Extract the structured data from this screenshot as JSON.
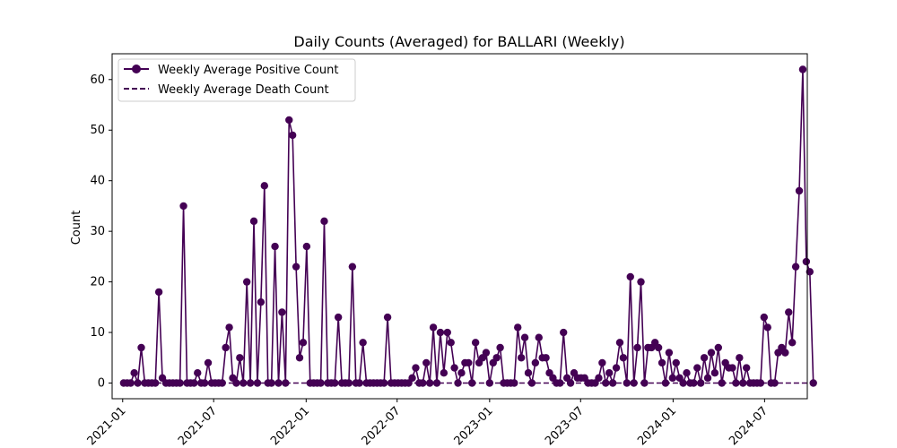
{
  "chart_data": {
    "type": "line",
    "title": "Daily Counts (Averaged) for BALLARI (Weekly)",
    "xlabel": "",
    "ylabel": "Count",
    "x_axis": "date",
    "xlim": [
      "2020-12-11",
      "2024-09-24"
    ],
    "ylim": [
      -3.1,
      65.1
    ],
    "yticks": [
      0,
      10,
      20,
      30,
      40,
      50,
      60
    ],
    "xticks": [
      {
        "date": "2021-01-01",
        "label": "2021-01"
      },
      {
        "date": "2021-07-01",
        "label": "2021-07"
      },
      {
        "date": "2022-01-01",
        "label": "2022-01"
      },
      {
        "date": "2022-07-01",
        "label": "2022-07"
      },
      {
        "date": "2023-01-01",
        "label": "2023-01"
      },
      {
        "date": "2023-07-01",
        "label": "2023-07"
      },
      {
        "date": "2024-01-01",
        "label": "2024-01"
      },
      {
        "date": "2024-07-01",
        "label": "2024-07"
      }
    ],
    "grid": false,
    "legend_position": "top-left",
    "x_start": "2021-01-03",
    "x_step_days": 7,
    "series": [
      {
        "name": "Weekly Average Positive Count",
        "color": "#440154",
        "style": "solid",
        "marker": "circle",
        "values": [
          0,
          0,
          0,
          2,
          0,
          7,
          0,
          0,
          0,
          0,
          18,
          1,
          0,
          0,
          0,
          0,
          0,
          35,
          0,
          0,
          0,
          2,
          0,
          0,
          4,
          0,
          0,
          0,
          0,
          7,
          11,
          1,
          0,
          5,
          0,
          20,
          0,
          32,
          0,
          16,
          39,
          0,
          0,
          27,
          0,
          14,
          0,
          52,
          49,
          23,
          5,
          8,
          27,
          0,
          0,
          0,
          0,
          32,
          0,
          0,
          0,
          13,
          0,
          0,
          0,
          23,
          0,
          0,
          8,
          0,
          0,
          0,
          0,
          0,
          0,
          13,
          0,
          0,
          0,
          0,
          0,
          0,
          1,
          3,
          0,
          0,
          4,
          0,
          11,
          0,
          10,
          2,
          10,
          8,
          3,
          0,
          2,
          4,
          4,
          0,
          8,
          4,
          5,
          6,
          0,
          4,
          5,
          7,
          0,
          0,
          0,
          0,
          11,
          5,
          9,
          2,
          0,
          4,
          9,
          5,
          5,
          2,
          1,
          0,
          0,
          10,
          1,
          0,
          2,
          1,
          1,
          1,
          0,
          0,
          0,
          1,
          4,
          0,
          2,
          0,
          3,
          8,
          5,
          0,
          21,
          0,
          7,
          20,
          0,
          7,
          7,
          8,
          7,
          4,
          0,
          6,
          1,
          4,
          1,
          0,
          2,
          0,
          0,
          3,
          0,
          5,
          1,
          6,
          2,
          7,
          0,
          4,
          3,
          3,
          0,
          5,
          0,
          3,
          0,
          0,
          0,
          0,
          13,
          11,
          0,
          0,
          6,
          7,
          6,
          14,
          8,
          23,
          38,
          62,
          24,
          22,
          0
        ]
      },
      {
        "name": "Weekly Average Death Count",
        "color": "#440154",
        "style": "dashed",
        "marker": "none",
        "constant_value": 0
      }
    ]
  }
}
